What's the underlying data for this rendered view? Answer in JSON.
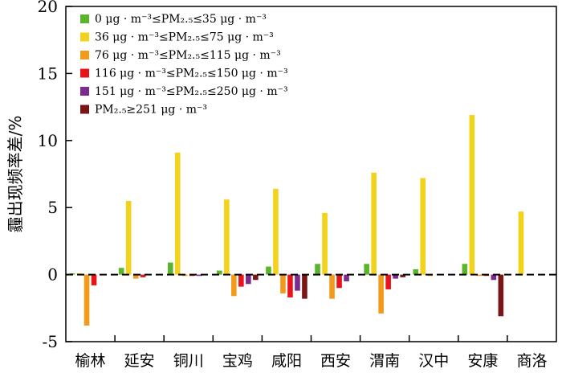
{
  "chart_data": {
    "type": "bar",
    "ylabel": "霾出现频率差/%",
    "ylim": [
      -5,
      20
    ],
    "yticks": [
      "-5",
      "0",
      "5",
      "10",
      "15",
      "20"
    ],
    "categories": [
      "榆林",
      "延安",
      "铜川",
      "宝鸡",
      "咸阳",
      "西安",
      "渭南",
      "汉中",
      "安康",
      "商洛"
    ],
    "zero_line": "dashed",
    "legend_position": "top-left",
    "series": [
      {
        "name": "0 μg·m⁻³≤PM₂.₅≤35 μg·m⁻³",
        "color": "#5ab52c",
        "values": [
          0.1,
          0.5,
          0.9,
          0.3,
          0.6,
          0.8,
          0.8,
          0.4,
          0.8,
          0.0
        ]
      },
      {
        "name": "36 μg·m⁻³≤PM₂.₅≤75 μg·m⁻³",
        "color": "#f3d21b",
        "values": [
          0.1,
          5.5,
          9.1,
          5.6,
          6.4,
          4.6,
          7.6,
          7.2,
          11.9,
          4.7
        ]
      },
      {
        "name": "76 μg·m⁻³≤PM₂.₅≤115 μg·m⁻³",
        "color": "#f39a1b",
        "values": [
          -3.8,
          -0.3,
          -0.1,
          -1.6,
          -1.4,
          -1.8,
          -2.9,
          -0.1,
          -0.1,
          0.0
        ]
      },
      {
        "name": "116 μg·m⁻³≤PM₂.₅≤150 μg·m⁻³",
        "color": "#e8141c",
        "values": [
          -0.8,
          -0.2,
          -0.1,
          -0.9,
          -1.7,
          -1.0,
          -1.1,
          0.0,
          -0.1,
          0.0
        ]
      },
      {
        "name": "151 μg·m⁻³≤PM₂.₅≤250 μg·m⁻³",
        "color": "#7d2a8e",
        "values": [
          0.0,
          0.0,
          -0.1,
          -0.7,
          -1.2,
          -0.5,
          -0.3,
          0.0,
          -0.4,
          0.0
        ]
      },
      {
        "name": "PM₂.₅≥251 μg·m⁻³",
        "color": "#7a1515",
        "values": [
          0.0,
          0.0,
          0.0,
          -0.4,
          -1.8,
          0.0,
          -0.2,
          0.0,
          -3.1,
          0.0
        ]
      }
    ],
    "legend": [
      {
        "text": "0  μg · m⁻³≤PM₂.₅≤35  μg · m⁻³"
      },
      {
        "text": "36  μg · m⁻³≤PM₂.₅≤75  μg · m⁻³"
      },
      {
        "text": "76  μg · m⁻³≤PM₂.₅≤115  μg · m⁻³"
      },
      {
        "text": "116  μg · m⁻³≤PM₂.₅≤150  μg · m⁻³"
      },
      {
        "text": "151  μg · m⁻³≤PM₂.₅≤250  μg · m⁻³"
      },
      {
        "text": "PM₂.₅≥251  μg · m⁻³"
      }
    ]
  }
}
